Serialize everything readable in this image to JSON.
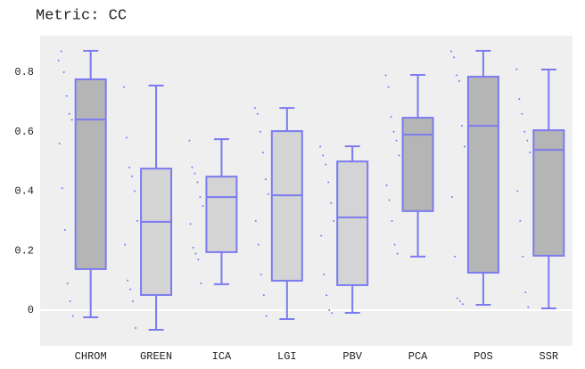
{
  "chart_data": {
    "type": "box",
    "title": "Metric: CC",
    "categories": [
      "CHROM",
      "GREEN",
      "ICA",
      "LGI",
      "PBV",
      "PCA",
      "POS",
      "SSR"
    ],
    "boxes": [
      {
        "min": -0.024,
        "q1": 0.138,
        "median": 0.641,
        "q3": 0.776,
        "max": 0.872,
        "fill": "#b5b5b5",
        "points": [
          0.84,
          0.87,
          0.8,
          0.72,
          0.66,
          0.64,
          0.56,
          0.41,
          0.27,
          0.09,
          0.03,
          -0.02
        ]
      },
      {
        "min": -0.066,
        "q1": 0.051,
        "median": 0.297,
        "q3": 0.476,
        "max": 0.755,
        "fill": "#d4d4d4",
        "points": [
          0.75,
          0.58,
          0.48,
          0.45,
          0.4,
          0.3,
          0.22,
          0.1,
          0.07,
          0.03,
          -0.06
        ]
      },
      {
        "min": 0.087,
        "q1": 0.195,
        "median": 0.38,
        "q3": 0.449,
        "max": 0.575,
        "fill": "#d4d4d4",
        "points": [
          0.57,
          0.48,
          0.46,
          0.43,
          0.38,
          0.35,
          0.29,
          0.21,
          0.19,
          0.17,
          0.09
        ]
      },
      {
        "min": -0.03,
        "q1": 0.099,
        "median": 0.386,
        "q3": 0.602,
        "max": 0.68,
        "fill": "#d4d4d4",
        "points": [
          0.68,
          0.66,
          0.6,
          0.53,
          0.44,
          0.39,
          0.3,
          0.22,
          0.12,
          0.05,
          -0.02
        ]
      },
      {
        "min": -0.009,
        "q1": 0.084,
        "median": 0.312,
        "q3": 0.5,
        "max": 0.551,
        "fill": "#d4d4d4",
        "points": [
          0.55,
          0.52,
          0.49,
          0.43,
          0.36,
          0.3,
          0.25,
          0.12,
          0.05,
          0.0,
          -0.01
        ]
      },
      {
        "min": 0.18,
        "q1": 0.333,
        "median": 0.59,
        "q3": 0.647,
        "max": 0.791,
        "fill": "#b5b5b5",
        "points": [
          0.79,
          0.75,
          0.65,
          0.6,
          0.57,
          0.52,
          0.42,
          0.37,
          0.3,
          0.22,
          0.19
        ]
      },
      {
        "min": 0.018,
        "q1": 0.126,
        "median": 0.62,
        "q3": 0.785,
        "max": 0.872,
        "fill": "#b5b5b5",
        "points": [
          0.87,
          0.85,
          0.79,
          0.77,
          0.62,
          0.55,
          0.38,
          0.18,
          0.04,
          0.03,
          0.02
        ]
      },
      {
        "min": 0.006,
        "q1": 0.183,
        "median": 0.539,
        "q3": 0.605,
        "max": 0.809,
        "fill": "#b5b5b5",
        "points": [
          0.81,
          0.71,
          0.66,
          0.6,
          0.57,
          0.53,
          0.4,
          0.3,
          0.18,
          0.06,
          0.01
        ]
      }
    ],
    "line_color": "#7b7bf0",
    "ylim": [
      -0.12,
      0.923
    ],
    "yticks": [
      0,
      0.2,
      0.4,
      0.6,
      0.8
    ],
    "zeroline": true
  }
}
